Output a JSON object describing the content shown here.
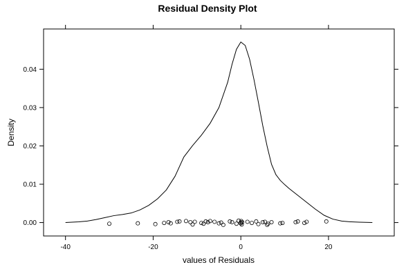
{
  "chart_data": {
    "type": "line",
    "title": "Residual Density Plot",
    "xlabel": "values of Residuals",
    "ylabel": "Density",
    "xlim": [
      -45,
      35
    ],
    "ylim": [
      -0.0035,
      0.0505
    ],
    "x_ticks": [
      -40,
      -20,
      0,
      20
    ],
    "x_tick_labels": [
      "-40",
      "-20",
      "0",
      "20"
    ],
    "y_ticks": [
      0.0,
      0.01,
      0.02,
      0.03,
      0.04
    ],
    "y_tick_labels": [
      "0.00",
      "0.01",
      "0.02",
      "0.03",
      "0.04"
    ],
    "grid": false,
    "legend": "none",
    "series": [
      {
        "x": [
          -40,
          -37,
          -35,
          -33,
          -31,
          -29,
          -27,
          -25,
          -23,
          -21,
          -19,
          -17,
          -15,
          -13,
          -11,
          -9,
          -7,
          -5,
          -3,
          -2,
          -1,
          0,
          1,
          2,
          3,
          4,
          5,
          6,
          7,
          8,
          9,
          10,
          11,
          13,
          15,
          17,
          19,
          21,
          23,
          25,
          27,
          30
        ],
        "y": [
          0.0,
          0.0002,
          0.0004,
          0.0008,
          0.0013,
          0.0018,
          0.0021,
          0.0025,
          0.0033,
          0.0045,
          0.0062,
          0.0085,
          0.0121,
          0.0171,
          0.0201,
          0.0228,
          0.0259,
          0.03,
          0.0366,
          0.0413,
          0.0452,
          0.0471,
          0.0462,
          0.0426,
          0.0373,
          0.0314,
          0.0253,
          0.0199,
          0.0152,
          0.0125,
          0.011,
          0.0099,
          0.0089,
          0.0071,
          0.0053,
          0.0035,
          0.0019,
          0.0009,
          0.0004,
          0.0002,
          0.0001,
          0.0
        ]
      }
    ],
    "rug_points": {
      "x": [
        -30,
        -23.5,
        -19.5,
        -17.5,
        -16.5,
        -16,
        -14.5,
        -14,
        -12.5,
        -11.5,
        -11,
        -10.5,
        -9,
        -8.5,
        -8,
        -7.5,
        -7,
        -6,
        -5,
        -4.5,
        -4,
        -2.5,
        -2,
        -1,
        -0.5,
        0,
        0,
        0.1,
        0.2,
        0.3,
        1.5,
        2.5,
        3.5,
        4,
        5,
        5.5,
        6,
        6.2,
        7,
        9,
        9.5,
        12.5,
        13,
        14.5,
        15,
        19.5
      ],
      "y": [
        -0.0003,
        -0.0002,
        -0.0004,
        -0.0001,
        0.0001,
        -0.0002,
        0.0002,
        0.0003,
        0.0004,
        0.0001,
        -0.0005,
        0.0002,
        -0.0001,
        -0.0003,
        0.0003,
        0.0001,
        0.0004,
        0.0002,
        -0.0002,
        0.0,
        -0.0006,
        0.0003,
        0.0001,
        -0.0003,
        0.0005,
        0.0,
        -0.0002,
        0.0004,
        -0.0005,
        0.0001,
        0.0002,
        -0.0001,
        0.0003,
        -0.0004,
        0.0001,
        0.0002,
        -0.0006,
        -0.0003,
        0.0001,
        -0.0002,
        -0.0001,
        0.0001,
        0.0003,
        -0.0001,
        0.0002,
        0.0003
      ]
    }
  }
}
